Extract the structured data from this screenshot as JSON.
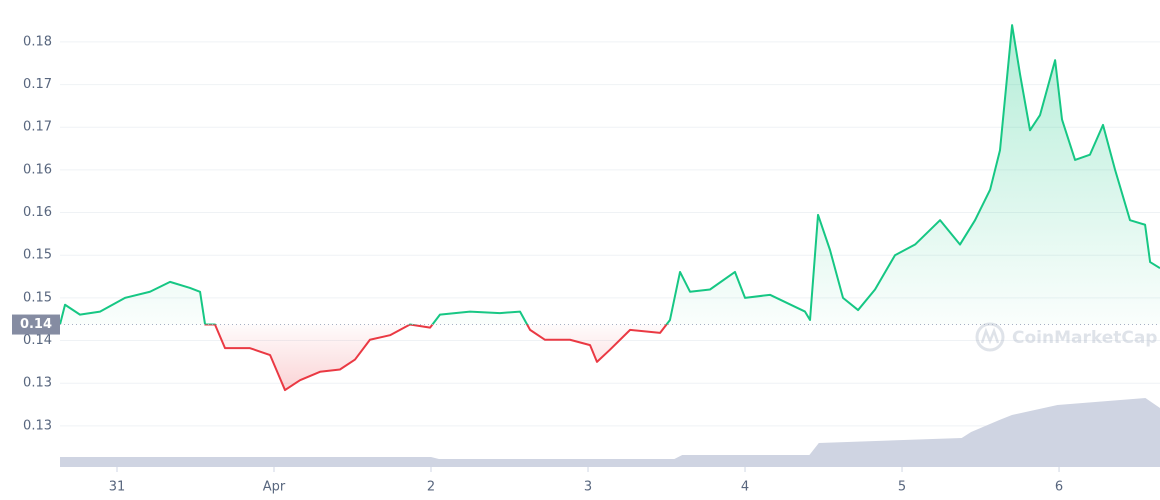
{
  "chart_data": {
    "type": "line",
    "watermark": "CoinMarketCap",
    "baseline": {
      "value": 0.1419,
      "label": "0.14"
    },
    "xlim": [
      -0.363,
      6.643
    ],
    "xticks": [
      {
        "value": 0,
        "label": "31"
      },
      {
        "value": 1,
        "label": "Apr"
      },
      {
        "value": 2,
        "label": "2"
      },
      {
        "value": 3,
        "label": "3"
      },
      {
        "value": 4,
        "label": "4"
      },
      {
        "value": 5,
        "label": "5"
      },
      {
        "value": 6,
        "label": "6"
      }
    ],
    "ylim": [
      0.1232,
      0.1845
    ],
    "yticks": [
      {
        "value": 0.179,
        "label": "0.18"
      },
      {
        "value": 0.1734,
        "label": "0.17"
      },
      {
        "value": 0.1678,
        "label": "0.17"
      },
      {
        "value": 0.1622,
        "label": "0.16"
      },
      {
        "value": 0.1566,
        "label": "0.16"
      },
      {
        "value": 0.151,
        "label": "0.15"
      },
      {
        "value": 0.1454,
        "label": "0.15"
      },
      {
        "value": 0.1398,
        "label": "0.14"
      },
      {
        "value": 0.1342,
        "label": "0.13"
      },
      {
        "value": 0.1286,
        "label": "0.13"
      }
    ],
    "grid": true,
    "up_color": "#16c784",
    "down_color": "#ea3943",
    "y2lim": [
      0,
      10
    ],
    "series": [
      {
        "color": "#16c784",
        "x": [
          -0.363,
          -0.331,
          -0.236,
          -0.108,
          0.051,
          0.21,
          0.338,
          0.465,
          0.529,
          0.561,
          0.624,
          0.688,
          0.847,
          0.975,
          1.07,
          1.166,
          1.293,
          1.42,
          1.516,
          1.611,
          1.739,
          1.866,
          1.994,
          2.057,
          2.248,
          2.439,
          2.567,
          2.631,
          2.726,
          2.885,
          3.013,
          3.057,
          3.14,
          3.268,
          3.459,
          3.522,
          3.586,
          3.65,
          3.777,
          3.936,
          4.0,
          4.159,
          4.382,
          4.414,
          4.465,
          4.541,
          4.624,
          4.72,
          4.828,
          4.955,
          5.083,
          5.242,
          5.369,
          5.465,
          5.561,
          5.624,
          5.701,
          5.752,
          5.815,
          5.879,
          5.975,
          6.019,
          6.102,
          6.197,
          6.28,
          6.357,
          6.452,
          6.548,
          6.58,
          6.643
        ],
        "values": [
          0.1419,
          0.1445,
          0.1432,
          0.1436,
          0.1454,
          0.1462,
          0.1475,
          0.1467,
          0.1462,
          0.1419,
          0.1419,
          0.1388,
          0.1388,
          0.1379,
          0.1333,
          0.1346,
          0.1357,
          0.136,
          0.1373,
          0.1399,
          0.1405,
          0.1419,
          0.1415,
          0.1432,
          0.1436,
          0.1434,
          0.1436,
          0.1412,
          0.1399,
          0.1399,
          0.1392,
          0.137,
          0.1386,
          0.1412,
          0.1408,
          0.1425,
          0.1488,
          0.1462,
          0.1465,
          0.1488,
          0.1454,
          0.1458,
          0.1436,
          0.1425,
          0.1563,
          0.1517,
          0.1454,
          0.1438,
          0.1465,
          0.151,
          0.1524,
          0.1556,
          0.1524,
          0.1556,
          0.1596,
          0.1648,
          0.1812,
          0.1747,
          0.1674,
          0.1694,
          0.1766,
          0.1688,
          0.1635,
          0.1642,
          0.1681,
          0.1622,
          0.1556,
          0.155,
          0.1501,
          0.1493
        ]
      },
      {
        "axis": "y2",
        "color": "#cfd4e2",
        "x": [
          -0.363,
          2.0,
          2.05,
          3.55,
          3.6,
          4.41,
          4.47,
          5.38,
          5.44,
          5.62,
          5.7,
          5.99,
          6.55,
          6.643
        ],
        "values": [
          1.0,
          1.0,
          0.8,
          0.8,
          1.2,
          1.2,
          2.4,
          2.9,
          3.5,
          4.7,
          5.2,
          6.2,
          6.9,
          5.9
        ]
      }
    ]
  }
}
